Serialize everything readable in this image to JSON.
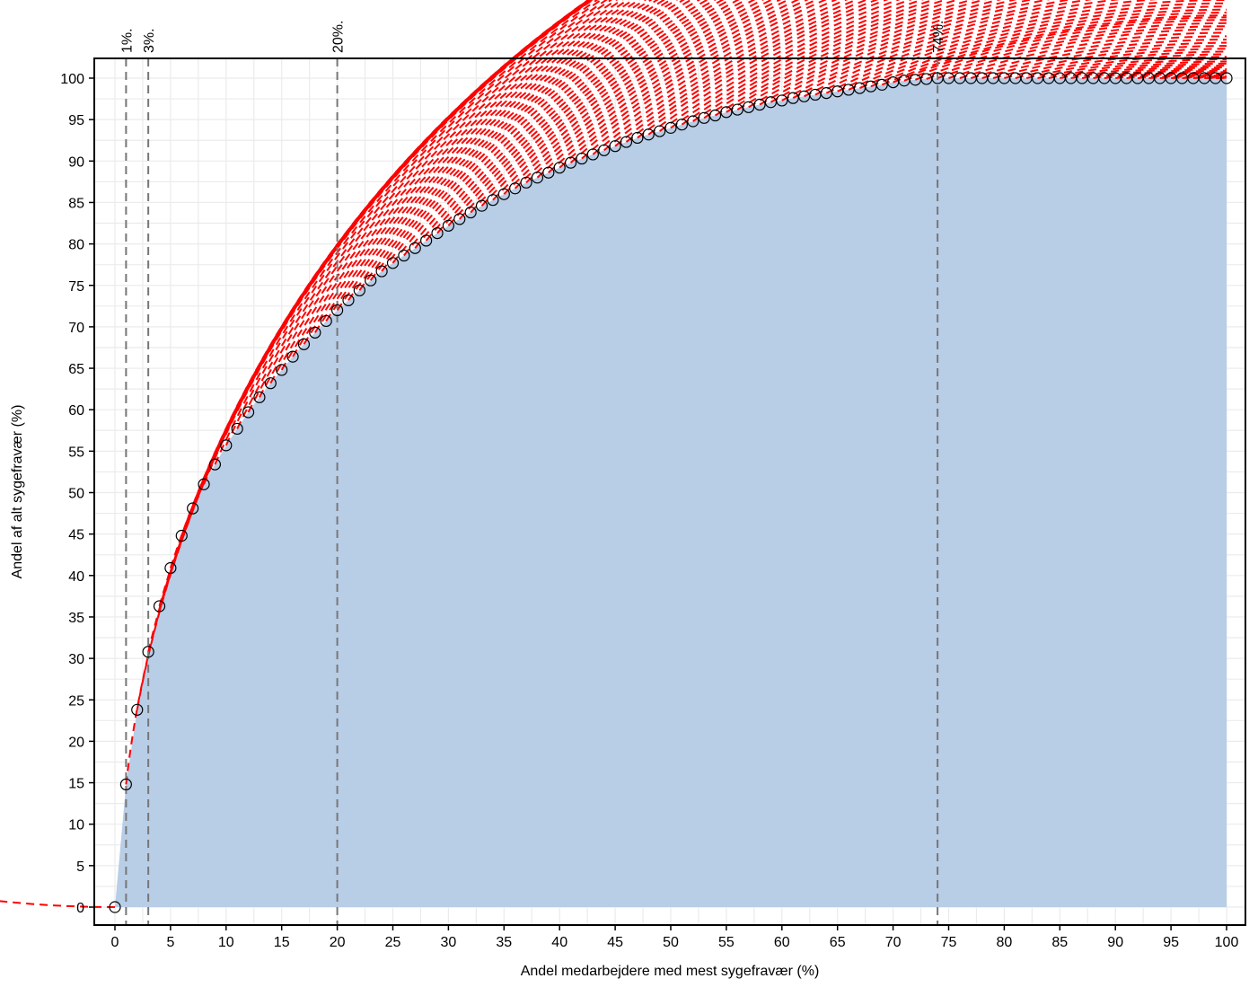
{
  "chart_data": {
    "type": "line",
    "xlabel": "Andel medarbejdere med mest sygefravær (%)",
    "ylabel": "Andel af alt sygefravær (%)",
    "xlim": [
      0,
      100
    ],
    "ylim": [
      0,
      100
    ],
    "x_ticks": [
      "0",
      "5",
      "10",
      "15",
      "20",
      "25",
      "30",
      "35",
      "40",
      "45",
      "50",
      "55",
      "60",
      "65",
      "70",
      "75",
      "80",
      "85",
      "90",
      "95",
      "100"
    ],
    "y_ticks": [
      "0",
      "5",
      "10",
      "15",
      "20",
      "25",
      "30",
      "35",
      "40",
      "45",
      "50",
      "55",
      "60",
      "65",
      "70",
      "75",
      "80",
      "85",
      "90",
      "95",
      "100"
    ],
    "grid": true,
    "reference_lines": [
      {
        "x": 1,
        "label": "1%."
      },
      {
        "x": 3,
        "label": "3%."
      },
      {
        "x": 20,
        "label": "20%."
      },
      {
        "x": 74,
        "label": "74%."
      }
    ],
    "series": [
      {
        "x": [
          0,
          1,
          2,
          3,
          4,
          5,
          6,
          7,
          8,
          9,
          10,
          11,
          12,
          13,
          14,
          15,
          16,
          17,
          18,
          19,
          20,
          21,
          22,
          23,
          24,
          25,
          26,
          27,
          28,
          29,
          30,
          31,
          32,
          33,
          34,
          35,
          36,
          37,
          38,
          39,
          40,
          41,
          42,
          43,
          44,
          45,
          46,
          47,
          48,
          49,
          50,
          51,
          52,
          53,
          54,
          55,
          56,
          57,
          58,
          59,
          60,
          61,
          62,
          63,
          64,
          65,
          66,
          67,
          68,
          69,
          70,
          71,
          72,
          73,
          74,
          75,
          76,
          77,
          78,
          79,
          80,
          81,
          82,
          83,
          84,
          85,
          86,
          87,
          88,
          89,
          90,
          91,
          92,
          93,
          94,
          95,
          96,
          97,
          98,
          99,
          100
        ],
        "y": [
          0,
          14.8,
          23.8,
          30.8,
          36.3,
          40.9,
          44.8,
          48.1,
          51.0,
          53.4,
          55.7,
          57.7,
          59.7,
          61.5,
          63.2,
          64.8,
          66.4,
          67.9,
          69.3,
          70.7,
          72.0,
          73.2,
          74.4,
          75.6,
          76.7,
          77.7,
          78.6,
          79.5,
          80.4,
          81.3,
          82.2,
          83.0,
          83.8,
          84.6,
          85.3,
          86.0,
          86.7,
          87.4,
          88.0,
          88.6,
          89.2,
          89.8,
          90.3,
          90.8,
          91.3,
          91.8,
          92.3,
          92.8,
          93.2,
          93.6,
          94.0,
          94.4,
          94.8,
          95.2,
          95.5,
          95.9,
          96.2,
          96.5,
          96.8,
          97.1,
          97.3,
          97.6,
          97.8,
          98.0,
          98.2,
          98.4,
          98.6,
          98.8,
          99.0,
          99.2,
          99.5,
          99.7,
          99.8,
          99.9,
          100,
          100,
          100,
          100,
          100,
          100,
          100,
          100,
          100,
          100,
          100,
          100,
          100,
          100,
          100,
          100,
          100,
          100,
          100,
          100,
          100,
          100,
          100,
          100,
          100,
          100,
          100
        ]
      }
    ]
  }
}
